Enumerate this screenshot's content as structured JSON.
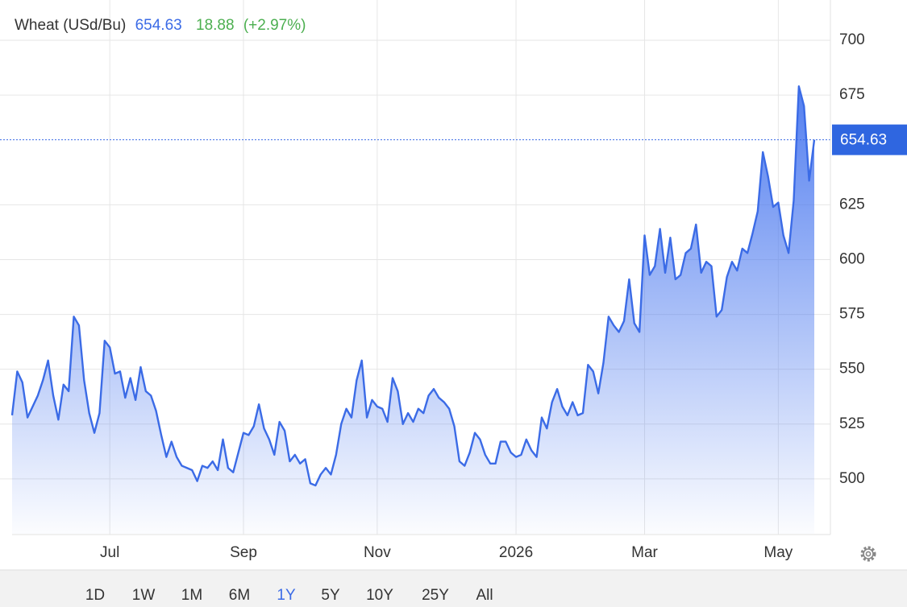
{
  "chart_data": {
    "type": "area",
    "title": "Wheat (USd/Bu)",
    "change": 18.88,
    "change_percent": {
      "value": 2.97,
      "label": "(+2.97%)"
    },
    "color": "#3b6be6",
    "grid": true,
    "ylim": [
      475,
      718
    ],
    "yticks": [
      500,
      525,
      550,
      575,
      600,
      625,
      675,
      700
    ],
    "categories": [
      null,
      null,
      null,
      null,
      null,
      null,
      null,
      null,
      null,
      null,
      null,
      null,
      null,
      null,
      null,
      null,
      null,
      null,
      null,
      "Jul",
      null,
      null,
      null,
      null,
      null,
      null,
      null,
      null,
      null,
      null,
      null,
      null,
      null,
      null,
      null,
      null,
      null,
      null,
      null,
      null,
      null,
      null,
      null,
      null,
      null,
      "Sep",
      null,
      null,
      null,
      null,
      null,
      null,
      null,
      null,
      null,
      null,
      null,
      null,
      null,
      null,
      null,
      null,
      null,
      null,
      null,
      null,
      null,
      null,
      null,
      null,
      null,
      "Nov",
      null,
      null,
      null,
      null,
      null,
      null,
      null,
      null,
      null,
      null,
      null,
      null,
      null,
      null,
      null,
      null,
      null,
      null,
      null,
      null,
      null,
      null,
      null,
      null,
      null,
      null,
      "2026",
      null,
      null,
      null,
      null,
      null,
      null,
      null,
      null,
      null,
      null,
      null,
      null,
      null,
      null,
      null,
      null,
      null,
      null,
      null,
      null,
      null,
      null,
      null,
      null,
      "Mar",
      null,
      null,
      null,
      null,
      null,
      null,
      null,
      null,
      null,
      null,
      null,
      null,
      null,
      null,
      null,
      null,
      null,
      null,
      null,
      null,
      null,
      null,
      null,
      null,
      null,
      "May",
      null,
      null,
      null,
      null,
      null,
      null,
      null
    ],
    "values": [
      529,
      549,
      544,
      528,
      533,
      538,
      545,
      554,
      538,
      527,
      543,
      540,
      574,
      570,
      545,
      530,
      521,
      530,
      563,
      560,
      548,
      549,
      537,
      546,
      536,
      551,
      540,
      538,
      531,
      520,
      510,
      517,
      510,
      506,
      505,
      504,
      499,
      506,
      505,
      508,
      504,
      518,
      505,
      503,
      512,
      521,
      520,
      524,
      534,
      523,
      518,
      511,
      526,
      522,
      508,
      511,
      507,
      509,
      498,
      497,
      502,
      505,
      502,
      511,
      525,
      532,
      528,
      545,
      554,
      528,
      536,
      533,
      532,
      526,
      546,
      540,
      525,
      530,
      526,
      532,
      530,
      538,
      541,
      537,
      535,
      532,
      524,
      508,
      506,
      512,
      521,
      518,
      511,
      507,
      507,
      517,
      517,
      512,
      510,
      511,
      518,
      513,
      510,
      528,
      523,
      535,
      541,
      533,
      529,
      535,
      529,
      530,
      552,
      549,
      539,
      553,
      574,
      570,
      567,
      572,
      591,
      571,
      567,
      611,
      593,
      597,
      614,
      594,
      610,
      591,
      593,
      603,
      605,
      616,
      594,
      599,
      597,
      574,
      577,
      592,
      599,
      595,
      605,
      603,
      612,
      622,
      649,
      638,
      624,
      626,
      611,
      603,
      627,
      679,
      670,
      636,
      654.63
    ],
    "ranges": [
      "1D",
      "1W",
      "1M",
      "6M",
      "1Y",
      "5Y",
      "10Y",
      "25Y",
      "All"
    ],
    "active_range": "1Y"
  }
}
